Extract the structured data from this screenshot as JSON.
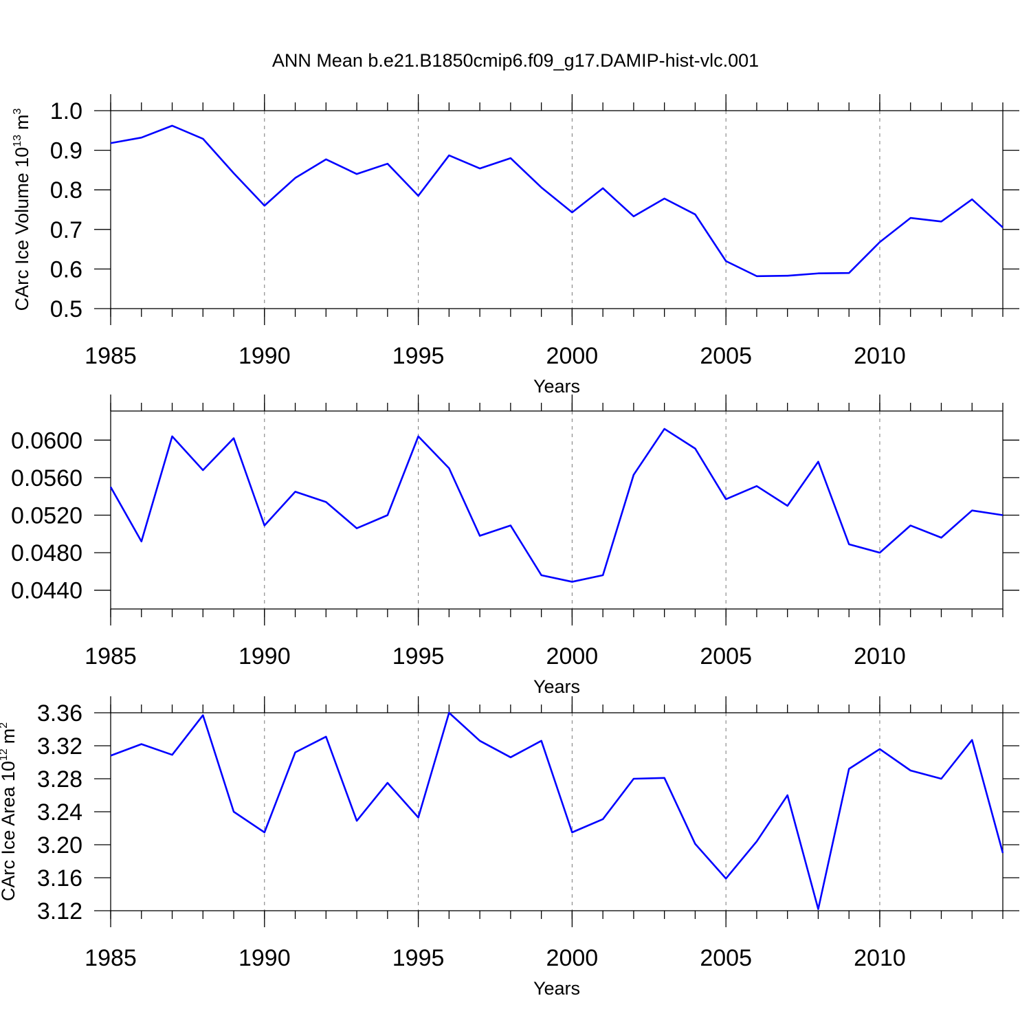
{
  "chart_data": [
    {
      "type": "line",
      "title": "ANN Mean b.e21.B1850cmip6.f09_g17.DAMIP-hist-vlc.001",
      "ylabel": {
        "text": "CArc Ice Volume 10",
        "sup": "13",
        "unit": "m",
        "unit_sup": "3"
      },
      "xlabel": "Years",
      "x": [
        1985,
        1986,
        1987,
        1988,
        1989,
        1990,
        1991,
        1992,
        1993,
        1994,
        1995,
        1996,
        1997,
        1998,
        1999,
        2000,
        2001,
        2002,
        2003,
        2004,
        2005,
        2006,
        2007,
        2008,
        2009,
        2010,
        2011,
        2012,
        2013,
        2014
      ],
      "values": [
        0.918,
        0.932,
        0.962,
        0.929,
        0.842,
        0.76,
        0.83,
        0.877,
        0.84,
        0.866,
        0.785,
        0.887,
        0.854,
        0.88,
        0.806,
        0.743,
        0.804,
        0.733,
        0.778,
        0.738,
        0.62,
        0.582,
        0.583,
        0.589,
        0.59,
        0.668,
        0.729,
        0.72,
        0.776,
        0.705
      ],
      "color": "#0000ff",
      "xlim": [
        1985,
        2014
      ],
      "xticks": [
        1985,
        1990,
        1995,
        2000,
        2005,
        2010
      ],
      "ylim": [
        0.5,
        1.0
      ],
      "yticks": [
        0.5,
        0.6,
        0.7,
        0.8,
        0.9,
        {
          "value": 1.0,
          "label": "1.0"
        }
      ],
      "xgrid": true
    },
    {
      "type": "line",
      "xlabel": "Years",
      "x": [
        1985,
        1986,
        1987,
        1988,
        1989,
        1990,
        1991,
        1992,
        1993,
        1994,
        1995,
        1996,
        1997,
        1998,
        1999,
        2000,
        2001,
        2002,
        2003,
        2004,
        2005,
        2006,
        2007,
        2008,
        2009,
        2010,
        2011,
        2012,
        2013,
        2014
      ],
      "values": [
        0.055,
        0.0492,
        0.0604,
        0.0568,
        0.0602,
        0.0509,
        0.0545,
        0.0534,
        0.0506,
        0.052,
        0.0604,
        0.057,
        0.0498,
        0.0509,
        0.0456,
        0.0449,
        0.0456,
        0.0563,
        0.0612,
        0.0591,
        0.0537,
        0.0551,
        0.053,
        0.0577,
        0.0489,
        0.048,
        0.0509,
        0.0496,
        0.0525,
        0.052
      ],
      "color": "#0000ff",
      "xlim": [
        1985,
        2014
      ],
      "xticks": [
        1985,
        1990,
        1995,
        2000,
        2005,
        2010
      ],
      "ylim": [
        0.042,
        0.0631
      ],
      "yticks": [
        {
          "value": 0.044,
          "label": "0.0440"
        },
        {
          "value": 0.048,
          "label": "0.0480"
        },
        {
          "value": 0.052,
          "label": "0.0520"
        },
        {
          "value": 0.056,
          "label": "0.0560"
        },
        {
          "value": 0.06,
          "label": "0.0600"
        }
      ],
      "xgrid": true
    },
    {
      "type": "line",
      "ylabel": {
        "text": "CArc Ice Area 10",
        "sup": "12",
        "unit": "m",
        "unit_sup": "2"
      },
      "xlabel": "Years",
      "x": [
        1985,
        1986,
        1987,
        1988,
        1989,
        1990,
        1991,
        1992,
        1993,
        1994,
        1995,
        1996,
        1997,
        1998,
        1999,
        2000,
        2001,
        2002,
        2003,
        2004,
        2005,
        2006,
        2007,
        2008,
        2009,
        2010,
        2011,
        2012,
        2013,
        2014
      ],
      "values": [
        3.308,
        3.322,
        3.309,
        3.357,
        3.24,
        3.215,
        3.312,
        3.331,
        3.229,
        3.275,
        3.233,
        3.36,
        3.326,
        3.306,
        3.326,
        3.215,
        3.231,
        3.28,
        3.281,
        3.201,
        3.159,
        3.204,
        3.26,
        3.122,
        3.292,
        3.316,
        3.29,
        3.28,
        3.327,
        3.19
      ],
      "color": "#0000ff",
      "xlim": [
        1985,
        2014
      ],
      "xticks": [
        1985,
        1990,
        1995,
        2000,
        2005,
        2010
      ],
      "ylim": [
        3.12,
        3.36
      ],
      "yticks": [
        3.12,
        3.16,
        {
          "value": 3.2,
          "label": "3.20"
        },
        3.24,
        3.28,
        3.32,
        3.36
      ],
      "xgrid": true
    }
  ]
}
